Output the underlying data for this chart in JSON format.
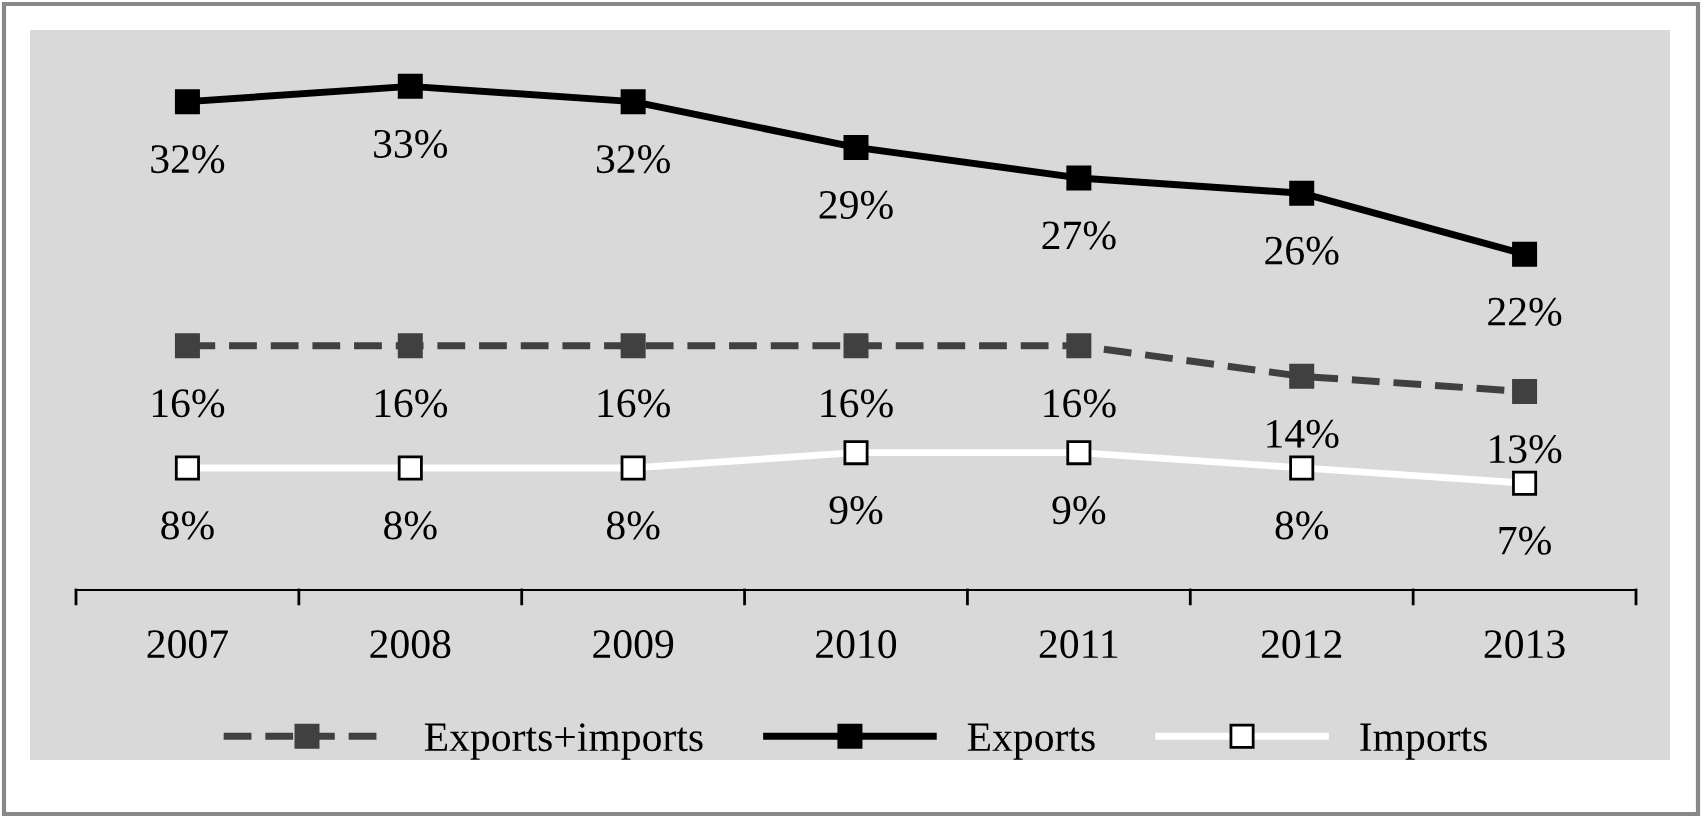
{
  "chart_data": {
    "type": "line",
    "categories": [
      "2007",
      "2008",
      "2009",
      "2010",
      "2011",
      "2012",
      "2013"
    ],
    "series": [
      {
        "name": "Exports+imports",
        "color": "#404040",
        "line_style": "dashed",
        "marker": "square",
        "values": [
          16,
          16,
          16,
          16,
          16,
          14,
          13
        ],
        "value_labels": [
          "16%",
          "16%",
          "16%",
          "16%",
          "16%",
          "14%",
          "13%"
        ]
      },
      {
        "name": "Exports",
        "color": "#000000",
        "line_style": "solid",
        "marker": "square",
        "values": [
          32,
          33,
          32,
          29,
          27,
          26,
          22
        ],
        "value_labels": [
          "32%",
          "33%",
          "32%",
          "29%",
          "27%",
          "26%",
          "22%"
        ]
      },
      {
        "name": "Imports",
        "color": "#ffffff",
        "line_style": "solid",
        "marker": "square",
        "values": [
          8,
          8,
          8,
          9,
          9,
          8,
          7
        ],
        "value_labels": [
          "8%",
          "8%",
          "8%",
          "9%",
          "9%",
          "8%",
          "7%"
        ]
      }
    ],
    "tick_labels": "x",
    "legend": "bottom"
  }
}
